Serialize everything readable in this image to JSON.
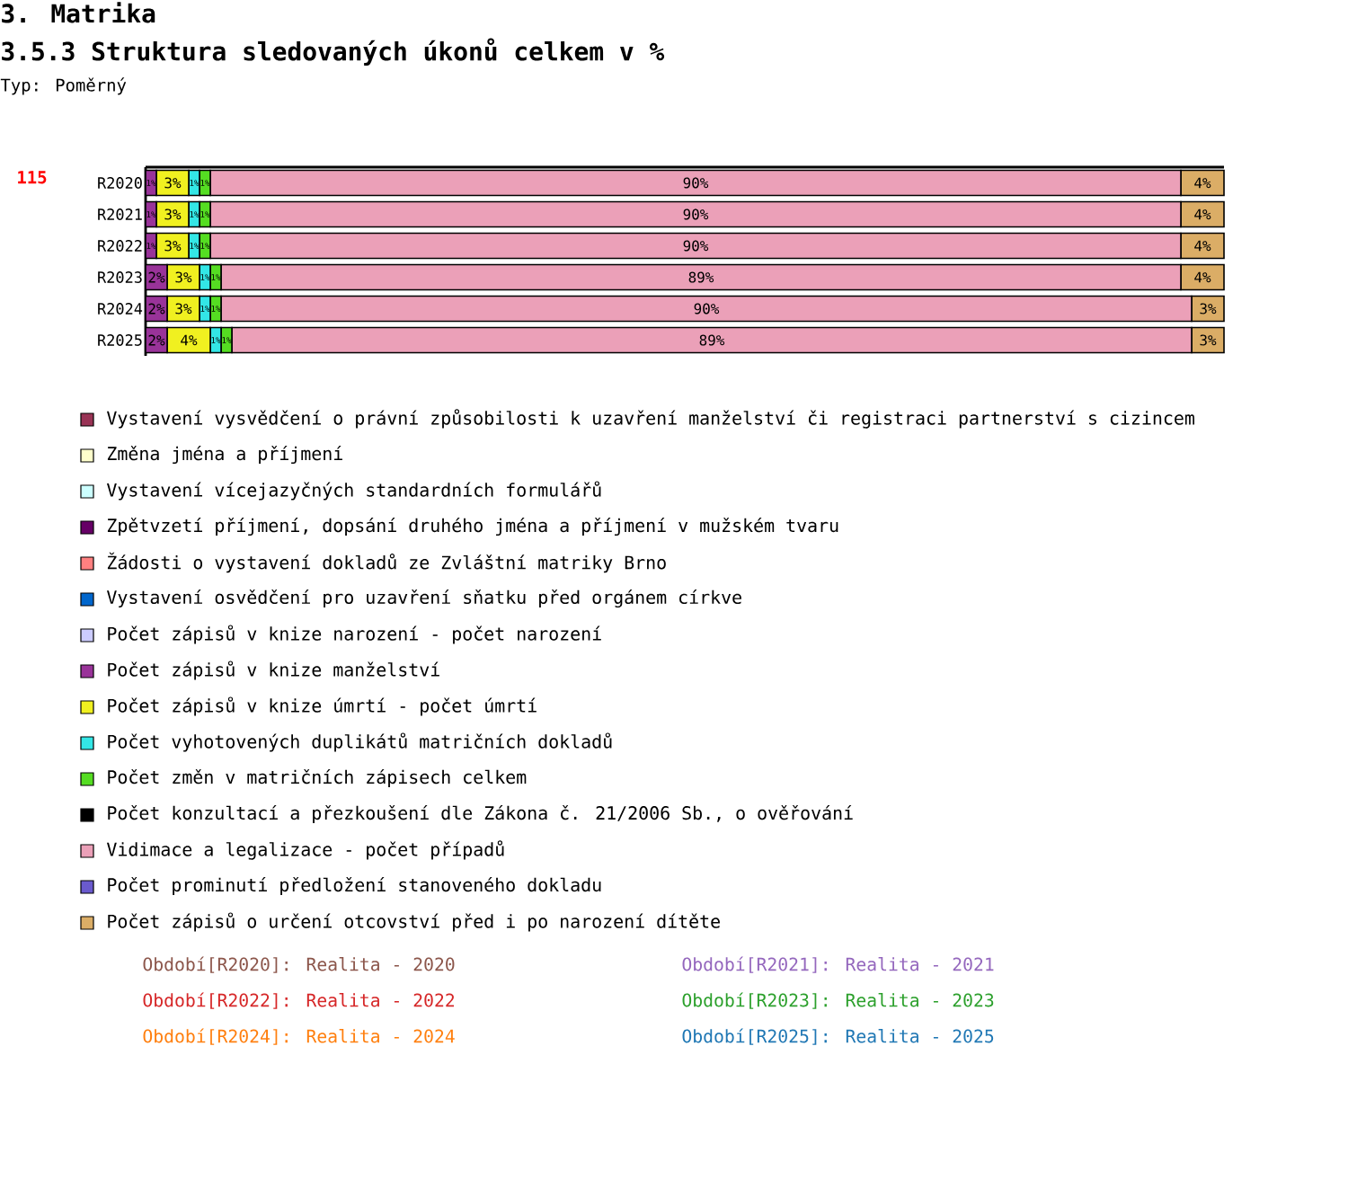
{
  "chart_data": {
    "type": "bar",
    "orientation": "horizontal",
    "stacked": true,
    "title": "3.5.3 Struktura sledovaných úkonů celkem v %",
    "annotations": [
      "3. Matrika",
      "Typ: Poměrný",
      "115",
      "Období[R2020]: Realita - 2020",
      "Období[R2021]: Realita - 2021",
      "Období[R2022]: Realita - 2022",
      "Období[R2023]: Realita - 2023",
      "Období[R2024]: Realita - 2024",
      "Období[R2025]: Realita - 2025"
    ],
    "categories": [
      "R2020",
      "R2021",
      "R2022",
      "R2023",
      "R2024",
      "R2025"
    ],
    "tick_labels": "y",
    "legend": "bottom",
    "series": [
      {
        "name": "Vystavení vysvědčení o právní způsobilosti k uzavření manželství či registraci partnerství s cizincem",
        "color": "#993355",
        "values": [
          null,
          null,
          null,
          null,
          null,
          null
        ]
      },
      {
        "name": "Změna jména a příjmení",
        "color": "#ffffcc",
        "values": [
          null,
          null,
          null,
          null,
          null,
          null
        ]
      },
      {
        "name": "Vystavení vícejazyčných standardních formulářů",
        "color": "#ccffff",
        "values": [
          null,
          null,
          null,
          null,
          null,
          null
        ]
      },
      {
        "name": "Zpětvzetí příjmení, dopsání druhého jména a příjmení v mužském tvaru",
        "color": "#660066",
        "values": [
          null,
          null,
          null,
          null,
          null,
          null
        ]
      },
      {
        "name": "Žádosti o vystavení dokladů ze Zvláštní matriky Brno",
        "color": "#ff8080",
        "values": [
          null,
          null,
          null,
          null,
          null,
          null
        ]
      },
      {
        "name": "Vystavení osvědčení pro uzavření sňatku před orgánem církve",
        "color": "#0066cc",
        "values": [
          null,
          null,
          null,
          null,
          null,
          null
        ]
      },
      {
        "name": "Počet zápisů v knize narození - počet narození",
        "color": "#ccccff",
        "values": [
          null,
          null,
          null,
          null,
          null,
          null
        ]
      },
      {
        "name": "Počet zápisů v knize manželství",
        "color": "#993399",
        "values": [
          1,
          1,
          1,
          2,
          2,
          2
        ],
        "value_labels": [
          "1%",
          "1%",
          "1%",
          "2%",
          "2%",
          "2%"
        ]
      },
      {
        "name": "Počet zápisů v knize úmrtí - počet úmrtí",
        "color": "#f0f020",
        "values": [
          3,
          3,
          3,
          3,
          3,
          4
        ],
        "value_labels": [
          "3%",
          "3%",
          "3%",
          "3%",
          "3%",
          "4%"
        ]
      },
      {
        "name": "Počet vyhotovených duplikátů matričních dokladů",
        "color": "#33e6e6",
        "values": [
          1,
          1,
          1,
          1,
          1,
          1
        ],
        "value_labels": [
          "1%",
          "1%",
          "1%",
          "1%",
          "1%",
          "1%"
        ]
      },
      {
        "name": "Počet změn v matričních zápisech celkem",
        "color": "#55dd22",
        "values": [
          1,
          1,
          1,
          1,
          1,
          1
        ],
        "value_labels": [
          "1%",
          "1%",
          "1%",
          "1%",
          "1%",
          "1%"
        ]
      },
      {
        "name": "Počet  konzultací a přezkoušení dle Zákona č. 21/2006 Sb., o ověřování",
        "color": "#000000",
        "values": [
          null,
          null,
          null,
          null,
          null,
          null
        ]
      },
      {
        "name": "Vidimace a legalizace - počet případů",
        "color": "#eba0b8",
        "values": [
          90,
          90,
          90,
          89,
          90,
          89
        ],
        "value_labels": [
          "90%",
          "90%",
          "90%",
          "89%",
          "90%",
          "89%"
        ]
      },
      {
        "name": "Počet prominutí předložení stanoveného dokladu",
        "color": "#6a5acd",
        "values": [
          null,
          null,
          null,
          null,
          null,
          null
        ]
      },
      {
        "name": "Počet zápisů o určení otcovství před i po narození dítěte",
        "color": "#dbad66",
        "values": [
          4,
          4,
          4,
          4,
          3,
          3
        ],
        "value_labels": [
          "4%",
          "4%",
          "4%",
          "4%",
          "3%",
          "3%"
        ]
      }
    ]
  }
}
